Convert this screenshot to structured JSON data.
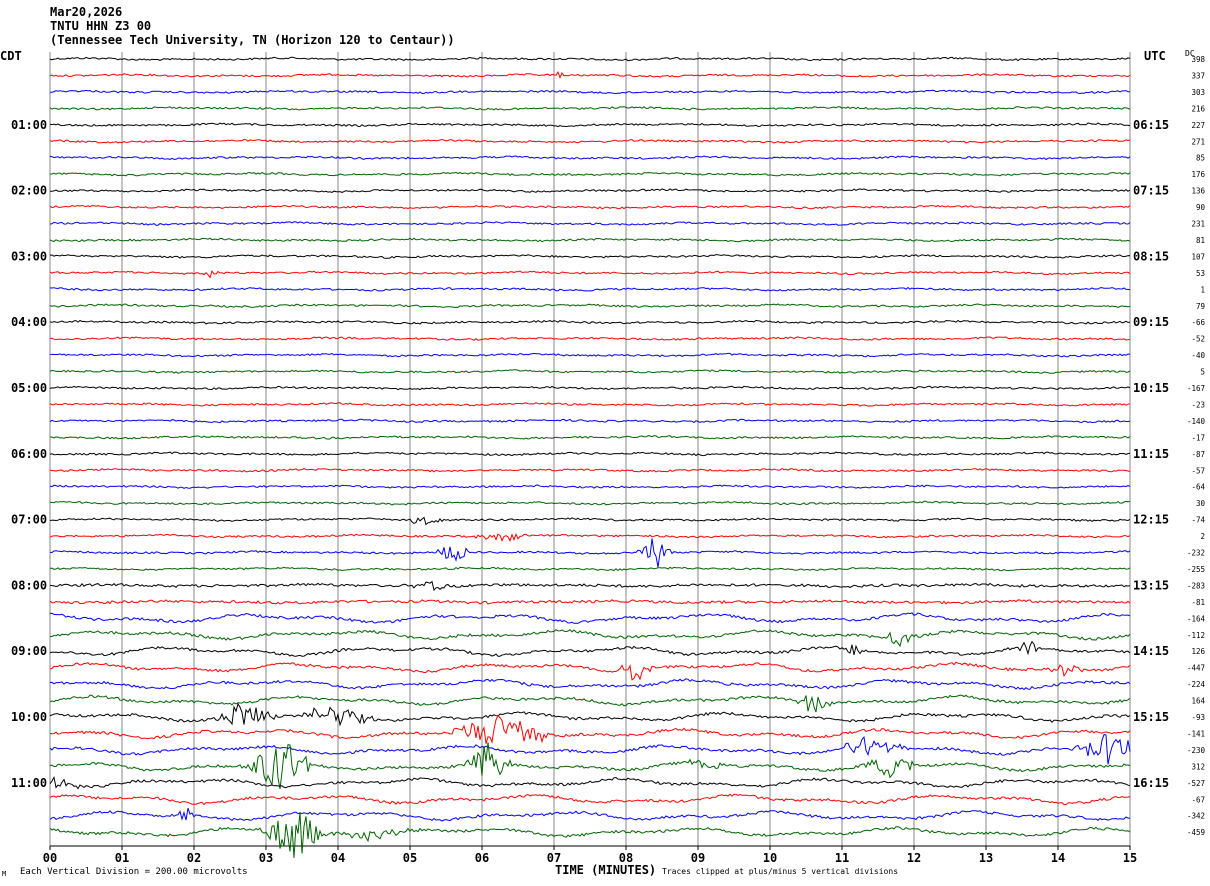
{
  "header": {
    "date": "Mar20,2026",
    "station": "TNTU HHN Z3 00",
    "location": "(Tennessee Tech University, TN (Horizon 120 to Centaur))"
  },
  "left_timezone": "CDT",
  "right_timezone": "UTC",
  "dc_label": "DC",
  "footer": {
    "division_note": "Each Vertical Division =  200.00 microvolts",
    "xlabel": "TIME (MINUTES)",
    "clip_note": "Traces clipped at plus/minus 5 vertical divisions",
    "corner_mark": "M"
  },
  "chart_data": {
    "type": "line",
    "title": "TNTU HHN Z3 00",
    "xlabel": "TIME (MINUTES)",
    "xlim": [
      0,
      15
    ],
    "x_ticks": [
      "00",
      "01",
      "02",
      "03",
      "04",
      "05",
      "06",
      "07",
      "08",
      "09",
      "10",
      "11",
      "12",
      "13",
      "14",
      "15"
    ],
    "grid": "vertical lines each minute",
    "trace_colors": [
      "#000000",
      "#ff0000",
      "#0000ff",
      "#006400"
    ],
    "left_time_labels": [
      {
        "row": 4,
        "text": "01:00"
      },
      {
        "row": 8,
        "text": "02:00"
      },
      {
        "row": 12,
        "text": "03:00"
      },
      {
        "row": 16,
        "text": "04:00"
      },
      {
        "row": 20,
        "text": "05:00"
      },
      {
        "row": 24,
        "text": "06:00"
      },
      {
        "row": 28,
        "text": "07:00"
      },
      {
        "row": 32,
        "text": "08:00"
      },
      {
        "row": 36,
        "text": "09:00"
      },
      {
        "row": 40,
        "text": "10:00"
      },
      {
        "row": 44,
        "text": "11:00"
      }
    ],
    "right_time_labels": [
      {
        "row": 4,
        "text": "06:15"
      },
      {
        "row": 8,
        "text": "07:15"
      },
      {
        "row": 12,
        "text": "08:15"
      },
      {
        "row": 16,
        "text": "09:15"
      },
      {
        "row": 20,
        "text": "10:15"
      },
      {
        "row": 24,
        "text": "11:15"
      },
      {
        "row": 28,
        "text": "12:15"
      },
      {
        "row": 32,
        "text": "13:15"
      },
      {
        "row": 36,
        "text": "14:15"
      },
      {
        "row": 40,
        "text": "15:15"
      },
      {
        "row": 44,
        "text": "16:15"
      }
    ],
    "dc_offsets": [
      "398",
      "337",
      "303",
      "216",
      "227",
      "271",
      "85",
      "176",
      "136",
      "90",
      "231",
      "81",
      "107",
      "53",
      "1",
      "79",
      "-66",
      "-52",
      "-40",
      "5",
      "-167",
      "-23",
      "-140",
      "-17",
      "-87",
      "-57",
      "-64",
      "30",
      "-74",
      "2",
      "-232",
      "-255",
      "-283",
      "-81",
      "-164",
      "-112",
      "126",
      "-447",
      "-224",
      "164",
      "-93",
      "-141",
      "-230",
      "312",
      "-527",
      "-67",
      "-342",
      "-459"
    ],
    "events": [
      {
        "row": 1,
        "minute": 7.1,
        "amp": 4,
        "width": 0.15
      },
      {
        "row": 13,
        "minute": 2.25,
        "amp": 5,
        "width": 0.2
      },
      {
        "row": 28,
        "minute": 5.2,
        "amp": 6,
        "width": 0.3
      },
      {
        "row": 29,
        "minute": 6.3,
        "amp": 6,
        "width": 0.5
      },
      {
        "row": 30,
        "minute": 5.6,
        "amp": 12,
        "width": 0.3
      },
      {
        "row": 30,
        "minute": 8.4,
        "amp": 18,
        "width": 0.3
      },
      {
        "row": 32,
        "minute": 5.3,
        "amp": 6,
        "width": 0.4
      },
      {
        "row": 35,
        "minute": 11.8,
        "amp": 10,
        "width": 0.3
      },
      {
        "row": 36,
        "minute": 11.2,
        "amp": 8,
        "width": 0.3
      },
      {
        "row": 36,
        "minute": 13.6,
        "amp": 8,
        "width": 0.3
      },
      {
        "row": 37,
        "minute": 8.1,
        "amp": 14,
        "width": 0.35
      },
      {
        "row": 37,
        "minute": 14.1,
        "amp": 8,
        "width": 0.3
      },
      {
        "row": 39,
        "minute": 10.6,
        "amp": 12,
        "width": 0.3
      },
      {
        "row": 40,
        "minute": 2.7,
        "amp": 18,
        "width": 0.5
      },
      {
        "row": 40,
        "minute": 4.0,
        "amp": 12,
        "width": 0.7
      },
      {
        "row": 41,
        "minute": 6.3,
        "amp": 24,
        "width": 0.9
      },
      {
        "row": 42,
        "minute": 11.4,
        "amp": 12,
        "width": 0.7
      },
      {
        "row": 42,
        "minute": 14.7,
        "amp": 18,
        "width": 0.6
      },
      {
        "row": 43,
        "minute": 3.2,
        "amp": 32,
        "width": 0.6
      },
      {
        "row": 43,
        "minute": 6.1,
        "amp": 24,
        "width": 0.4
      },
      {
        "row": 43,
        "minute": 11.7,
        "amp": 14,
        "width": 0.5
      },
      {
        "row": 43,
        "minute": 9.1,
        "amp": 8,
        "width": 0.4
      },
      {
        "row": 44,
        "minute": 0.1,
        "amp": 10,
        "width": 0.4
      },
      {
        "row": 46,
        "minute": 1.9,
        "amp": 8,
        "width": 0.2
      },
      {
        "row": 47,
        "minute": 3.4,
        "amp": 30,
        "width": 0.6
      },
      {
        "row": 47,
        "minute": 4.5,
        "amp": 6,
        "width": 0.8
      }
    ]
  }
}
